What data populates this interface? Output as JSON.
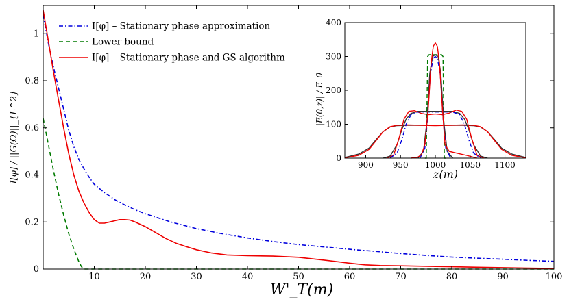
{
  "chart_data": [
    {
      "type": "line",
      "title": "",
      "xlabel": "W'_T(m)",
      "ylabel": "I[φ] / ||G(Ω)||_{L^2}",
      "xlim": [
        0,
        100
      ],
      "ylim": [
        0,
        1.12
      ],
      "x_ticks": [
        10,
        20,
        30,
        40,
        50,
        60,
        70,
        80,
        90,
        100
      ],
      "y_ticks": [
        0,
        0.2,
        0.4,
        0.6,
        0.8,
        1
      ],
      "x_tick_labels": [
        "10",
        "20",
        "30",
        "40",
        "50",
        "60",
        "70",
        "80",
        "90",
        "100"
      ],
      "y_tick_labels": [
        "0",
        "0.2",
        "0.4",
        "0.6",
        "0.8",
        "1"
      ],
      "legend_position": "top-left",
      "series": [
        {
          "name": "I[φ] – Stationary phase approximation",
          "color": "#0000dd",
          "style": "dashdot",
          "x": [
            0,
            1,
            2,
            3,
            4,
            5,
            6,
            7,
            8,
            9,
            10,
            12,
            14,
            16,
            18,
            20,
            25,
            30,
            35,
            40,
            45,
            50,
            55,
            60,
            65,
            70,
            75,
            80,
            85,
            90,
            95,
            100
          ],
          "y": [
            1.08,
            0.96,
            0.86,
            0.77,
            0.68,
            0.59,
            0.52,
            0.465,
            0.425,
            0.39,
            0.36,
            0.325,
            0.295,
            0.272,
            0.252,
            0.235,
            0.2,
            0.172,
            0.15,
            0.132,
            0.117,
            0.104,
            0.094,
            0.084,
            0.075,
            0.066,
            0.058,
            0.051,
            0.046,
            0.042,
            0.037,
            0.033
          ]
        },
        {
          "name": "Lower bound",
          "color": "#007a00",
          "style": "dashed",
          "x": [
            0,
            1,
            2,
            3,
            4,
            5,
            6,
            7,
            7.5,
            8,
            9,
            10,
            20,
            30,
            40,
            50,
            60,
            70,
            80,
            90,
            100
          ],
          "y": [
            0.64,
            0.53,
            0.42,
            0.32,
            0.23,
            0.15,
            0.085,
            0.03,
            0.01,
            0,
            0,
            0,
            0,
            0,
            0,
            0,
            0,
            0,
            0,
            0,
            0
          ]
        },
        {
          "name": "I[φ] – Stationary phase and GS algorithm",
          "color": "#ee0000",
          "style": "solid",
          "x": [
            0,
            1,
            2,
            3,
            4,
            5,
            6,
            7,
            8,
            9,
            10,
            11,
            12,
            13,
            14,
            15,
            16,
            17,
            18,
            20,
            22,
            24,
            26,
            28,
            30,
            33,
            36,
            40,
            45,
            50,
            55,
            60,
            63,
            66,
            70,
            75,
            80,
            85,
            90,
            95,
            100
          ],
          "y": [
            1.1,
            0.97,
            0.84,
            0.72,
            0.6,
            0.49,
            0.4,
            0.33,
            0.28,
            0.24,
            0.21,
            0.195,
            0.195,
            0.2,
            0.205,
            0.21,
            0.21,
            0.208,
            0.2,
            0.18,
            0.155,
            0.13,
            0.11,
            0.095,
            0.082,
            0.068,
            0.06,
            0.057,
            0.055,
            0.05,
            0.038,
            0.025,
            0.018,
            0.015,
            0.014,
            0.012,
            0.01,
            0.008,
            0.006,
            0.004,
            0.003
          ]
        }
      ]
    },
    {
      "type": "line",
      "title": "",
      "xlabel": "z(m)",
      "ylabel": "|E(0,z)| / E_0",
      "xlim": [
        870,
        1130
      ],
      "ylim": [
        0,
        400
      ],
      "x_ticks": [
        900,
        950,
        1000,
        1050,
        1100
      ],
      "y_ticks": [
        0,
        100,
        200,
        300,
        400
      ],
      "x_tick_labels": [
        "900",
        "950",
        "1000",
        "1050",
        "1100"
      ],
      "y_tick_labels": [
        "0",
        "100",
        "200",
        "300",
        "400"
      ],
      "legend_position": "none",
      "series": [
        {
          "name": "dark smooth (wide)",
          "color": "#333333",
          "style": "solid",
          "x": [
            870,
            890,
            905,
            915,
            925,
            935,
            945,
            960,
            980,
            1000,
            1020,
            1040,
            1055,
            1065,
            1075,
            1085,
            1095,
            1110,
            1130
          ],
          "y": [
            2,
            12,
            30,
            55,
            78,
            92,
            96,
            97,
            97,
            97,
            97,
            97,
            96,
            92,
            78,
            55,
            30,
            12,
            2
          ]
        },
        {
          "name": "red (wide)",
          "color": "#ee0000",
          "style": "solid",
          "x": [
            870,
            890,
            905,
            915,
            925,
            935,
            945,
            960,
            980,
            1000,
            1020,
            1040,
            1055,
            1065,
            1075,
            1085,
            1095,
            1110,
            1130
          ],
          "y": [
            1,
            8,
            26,
            52,
            78,
            93,
            97,
            98,
            97,
            96,
            97,
            98,
            97,
            93,
            78,
            52,
            26,
            8,
            1
          ]
        },
        {
          "name": "dark smooth (medium)",
          "color": "#333333",
          "style": "solid",
          "x": [
            925,
            935,
            945,
            952,
            958,
            965,
            975,
            990,
            1000,
            1010,
            1025,
            1035,
            1042,
            1048,
            1055,
            1065,
            1075
          ],
          "y": [
            0,
            6,
            40,
            85,
            115,
            132,
            138,
            138,
            138,
            138,
            138,
            132,
            115,
            85,
            40,
            6,
            0
          ]
        },
        {
          "name": "red (medium)",
          "color": "#ee0000",
          "style": "solid",
          "x": [
            930,
            940,
            948,
            955,
            962,
            970,
            980,
            990,
            1000,
            1010,
            1020,
            1030,
            1038,
            1045,
            1052,
            1060,
            1070
          ],
          "y": [
            0,
            8,
            60,
            115,
            138,
            140,
            132,
            128,
            130,
            128,
            133,
            142,
            138,
            115,
            60,
            8,
            0
          ]
        },
        {
          "name": "blue dashdot (medium)",
          "color": "#0000dd",
          "style": "dashdot",
          "x": [
            935,
            945,
            952,
            958,
            965,
            975,
            990,
            1000,
            1010,
            1025,
            1035,
            1042,
            1048,
            1055,
            1065
          ],
          "y": [
            0,
            15,
            55,
            100,
            128,
            136,
            136,
            136,
            136,
            136,
            128,
            100,
            55,
            15,
            0
          ]
        },
        {
          "name": "green dashed (narrow)",
          "color": "#007a00",
          "style": "dashed",
          "x": [
            985,
            987,
            988,
            989,
            991,
            1000,
            1009,
            1011,
            1012,
            1013,
            1015
          ],
          "y": [
            0,
            0,
            150,
            300,
            305,
            305,
            305,
            300,
            150,
            0,
            0
          ]
        },
        {
          "name": "dark smooth (narrow)",
          "color": "#333333",
          "style": "solid",
          "x": [
            975,
            983,
            988,
            992,
            996,
            1000,
            1004,
            1008,
            1012,
            1017,
            1025
          ],
          "y": [
            0,
            20,
            110,
            250,
            300,
            305,
            300,
            250,
            110,
            20,
            0
          ]
        },
        {
          "name": "blue dashdot (narrow)",
          "color": "#0000dd",
          "style": "dashdot",
          "x": [
            978,
            985,
            989,
            993,
            997,
            1000,
            1003,
            1007,
            1011,
            1015,
            1022
          ],
          "y": [
            0,
            30,
            120,
            250,
            295,
            300,
            295,
            250,
            120,
            30,
            0
          ]
        },
        {
          "name": "red (narrow)",
          "color": "#ee0000",
          "style": "solid",
          "x": [
            965,
            975,
            980,
            985,
            990,
            994,
            997,
            1000,
            1003,
            1006,
            1010,
            1014,
            1020,
            1030,
            1045,
            1060
          ],
          "y": [
            0,
            3,
            10,
            40,
            150,
            280,
            330,
            340,
            330,
            280,
            150,
            40,
            20,
            15,
            8,
            0
          ]
        }
      ]
    }
  ]
}
